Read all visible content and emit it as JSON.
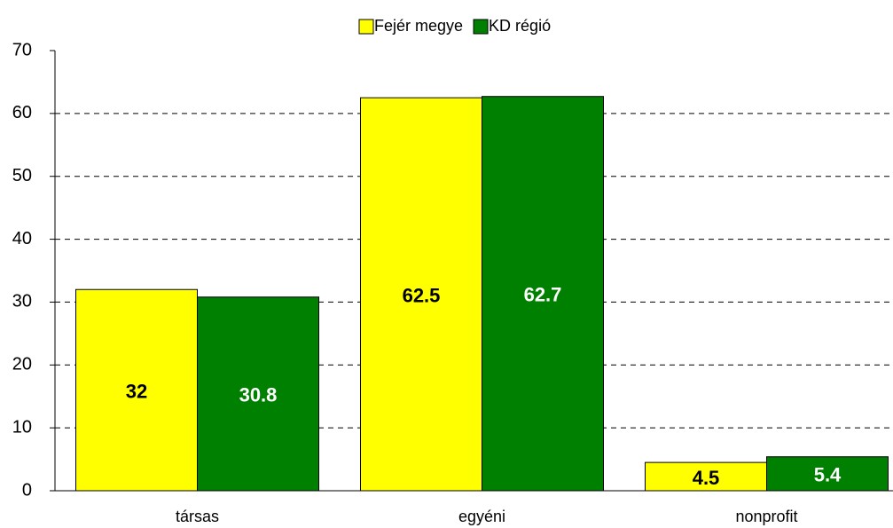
{
  "chart_data": {
    "type": "bar",
    "categories": [
      "társas",
      "egyéni",
      "nonprofit"
    ],
    "series": [
      {
        "name": "Fejér megye",
        "color": "#ffff00",
        "values": [
          32,
          62.5,
          4.5
        ]
      },
      {
        "name": "KD régió",
        "color": "#008000",
        "values": [
          30.8,
          62.7,
          5.4
        ]
      }
    ],
    "ylim": [
      0,
      70
    ],
    "yticks": [
      0,
      10,
      20,
      30,
      40,
      50,
      60,
      70
    ],
    "grid": true,
    "legend": "top"
  }
}
